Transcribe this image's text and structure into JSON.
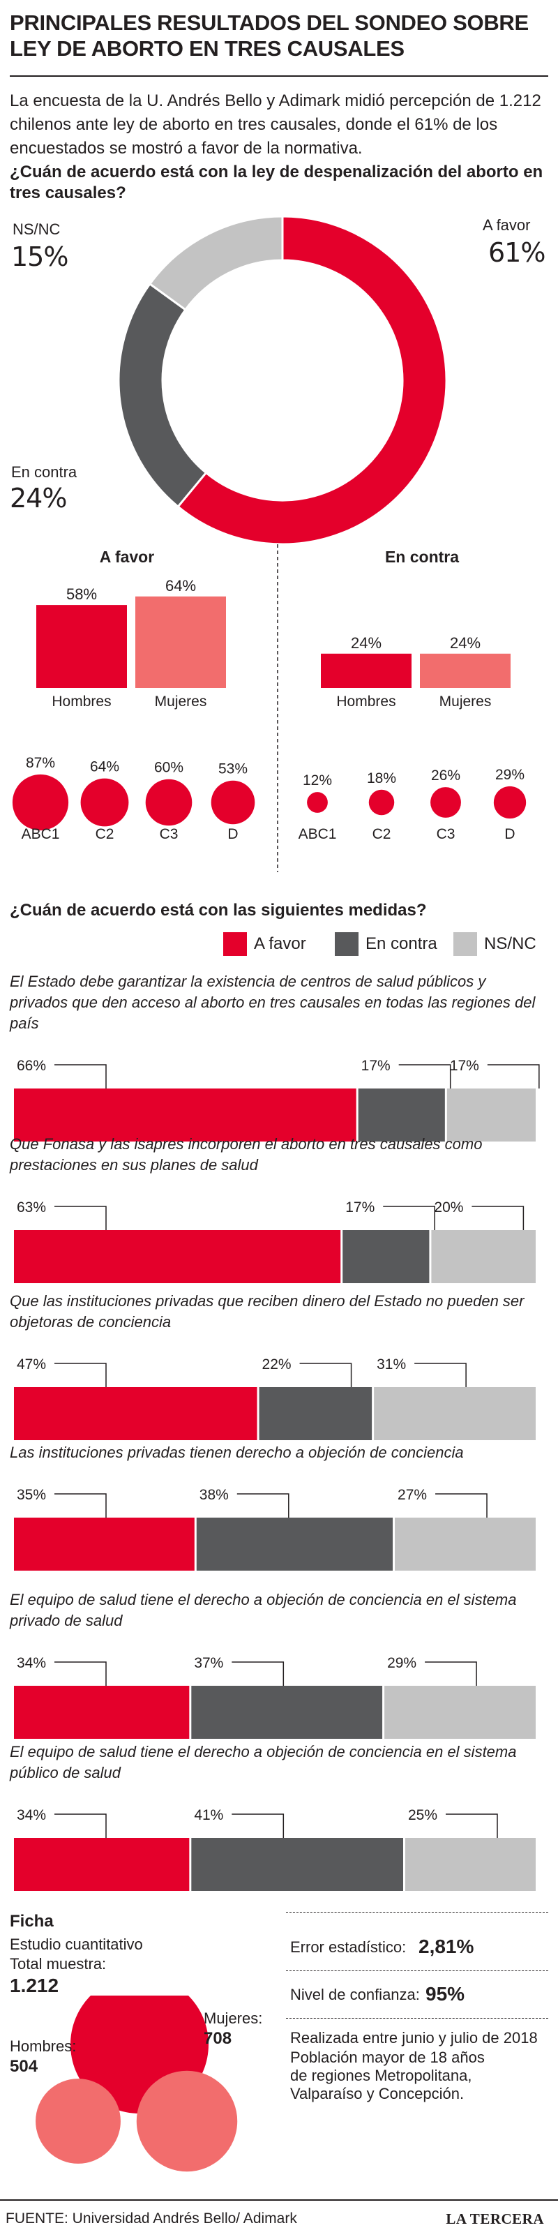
{
  "title": "PRINCIPALES RESULTADOS DEL SONDEO SOBRE LEY DE ABORTO EN TRES CAUSALES",
  "intro": "La encuesta de la U. Andrés Bello y Adimark midió percepción de 1.212 chilenos ante ley de aborto en tres causales, donde el 61% de los encuestados se mostró a favor de la normativa.",
  "colors": {
    "favor": "#e4002b",
    "favor_light": "#f26d6d",
    "contra": "#58595b",
    "nsnc": "#c3c3c3"
  },
  "chart_data": [
    {
      "type": "pie",
      "title": "¿Cuán de acuerdo está con la ley de despenalización del aborto en tres causales?",
      "slices": [
        {
          "label": "A favor",
          "value": 61,
          "display": "61%"
        },
        {
          "label": "En contra",
          "value": 24,
          "display": "24%"
        },
        {
          "label": "NS/NC",
          "value": 15,
          "display": "15%"
        }
      ]
    },
    {
      "type": "bar",
      "title": "A favor",
      "categories": [
        "Hombres",
        "Mujeres"
      ],
      "values": [
        58,
        64
      ],
      "labels": [
        "58%",
        "64%"
      ],
      "ylim": [
        0,
        100
      ]
    },
    {
      "type": "bar",
      "title": "En contra",
      "categories": [
        "Hombres",
        "Mujeres"
      ],
      "values": [
        24,
        24
      ],
      "labels": [
        "24%",
        "24%"
      ],
      "ylim": [
        0,
        100
      ]
    },
    {
      "type": "scatter",
      "title": "A favor por GSE",
      "categories": [
        "ABC1",
        "C2",
        "C3",
        "D"
      ],
      "values": [
        87,
        64,
        60,
        53
      ],
      "labels": [
        "87%",
        "64%",
        "60%",
        "53%"
      ]
    },
    {
      "type": "scatter",
      "title": "En contra por GSE",
      "categories": [
        "ABC1",
        "C2",
        "C3",
        "D"
      ],
      "values": [
        12,
        18,
        26,
        29
      ],
      "labels": [
        "12%",
        "18%",
        "26%",
        "29%"
      ]
    },
    {
      "type": "bar",
      "title": "¿Cuán de acuerdo está con las siguientes medidas?",
      "legend": [
        "A favor",
        "En contra",
        "NS/NC"
      ],
      "items": [
        {
          "text": "El Estado debe garantizar la existencia de centros de salud públicos y privados que den acceso al aborto en tres causales en todas las regiones del país",
          "values": [
            66,
            17,
            17
          ],
          "labels": [
            "66%",
            "17%",
            "17%"
          ]
        },
        {
          "text": "Que Fonasa y las isapres incorporen el aborto en tres causales como prestaciones en sus planes de salud",
          "values": [
            63,
            17,
            20
          ],
          "labels": [
            "63%",
            "17%",
            "20%"
          ]
        },
        {
          "text": "Que las instituciones  privadas que reciben dinero del Estado no pueden ser objetoras de conciencia",
          "values": [
            47,
            22,
            31
          ],
          "labels": [
            "47%",
            "22%",
            "31%"
          ]
        },
        {
          "text": "Las instituciones privadas tienen derecho a objeción de conciencia",
          "values": [
            35,
            38,
            27
          ],
          "labels": [
            "35%",
            "38%",
            "27%"
          ]
        },
        {
          "text": "El equipo de salud tiene el derecho a objeción de conciencia en el sistema privado de salud",
          "values": [
            34,
            37,
            29
          ],
          "labels": [
            "34%",
            "37%",
            "29%"
          ]
        },
        {
          "text": "El equipo de salud tiene el derecho a objeción de conciencia en el sistema público de salud",
          "values": [
            34,
            41,
            25
          ],
          "labels": [
            "34%",
            "41%",
            "25%"
          ]
        }
      ]
    },
    {
      "type": "scatter",
      "title": "Total muestra:",
      "categories": [
        "Hombres:",
        "Mujeres:"
      ],
      "values": [
        504,
        708
      ],
      "labels": [
        "504",
        "708"
      ]
    }
  ],
  "pie_labels": {
    "favor": {
      "name": "A favor",
      "value": "61%"
    },
    "contra": {
      "name": "En contra",
      "value": "24%"
    },
    "nsnc": {
      "name": "NS/NC",
      "value": "15%"
    }
  },
  "ficha": {
    "title": "Ficha",
    "tipo": "Estudio cuantitativo",
    "total_label": "Total muestra:",
    "total_value": "1.212",
    "hombres_label": "Hombres:",
    "hombres_value": "504",
    "mujeres_label": "Mujeres:",
    "mujeres_value": "708",
    "error_label": "Error estadístico:",
    "error_value": "2,81%",
    "confianza_label": "Nivel de confianza:",
    "confianza_value": "95%",
    "realizada": "Realizada entre junio y julio de 2018",
    "poblacion": "Población mayor de 18 años de regiones Metropolitana, Valparaíso y Concepción."
  },
  "footer": {
    "source": "FUENTE: Universidad Andrés Bello/ Adimark",
    "brand": "LA TERCERA"
  }
}
